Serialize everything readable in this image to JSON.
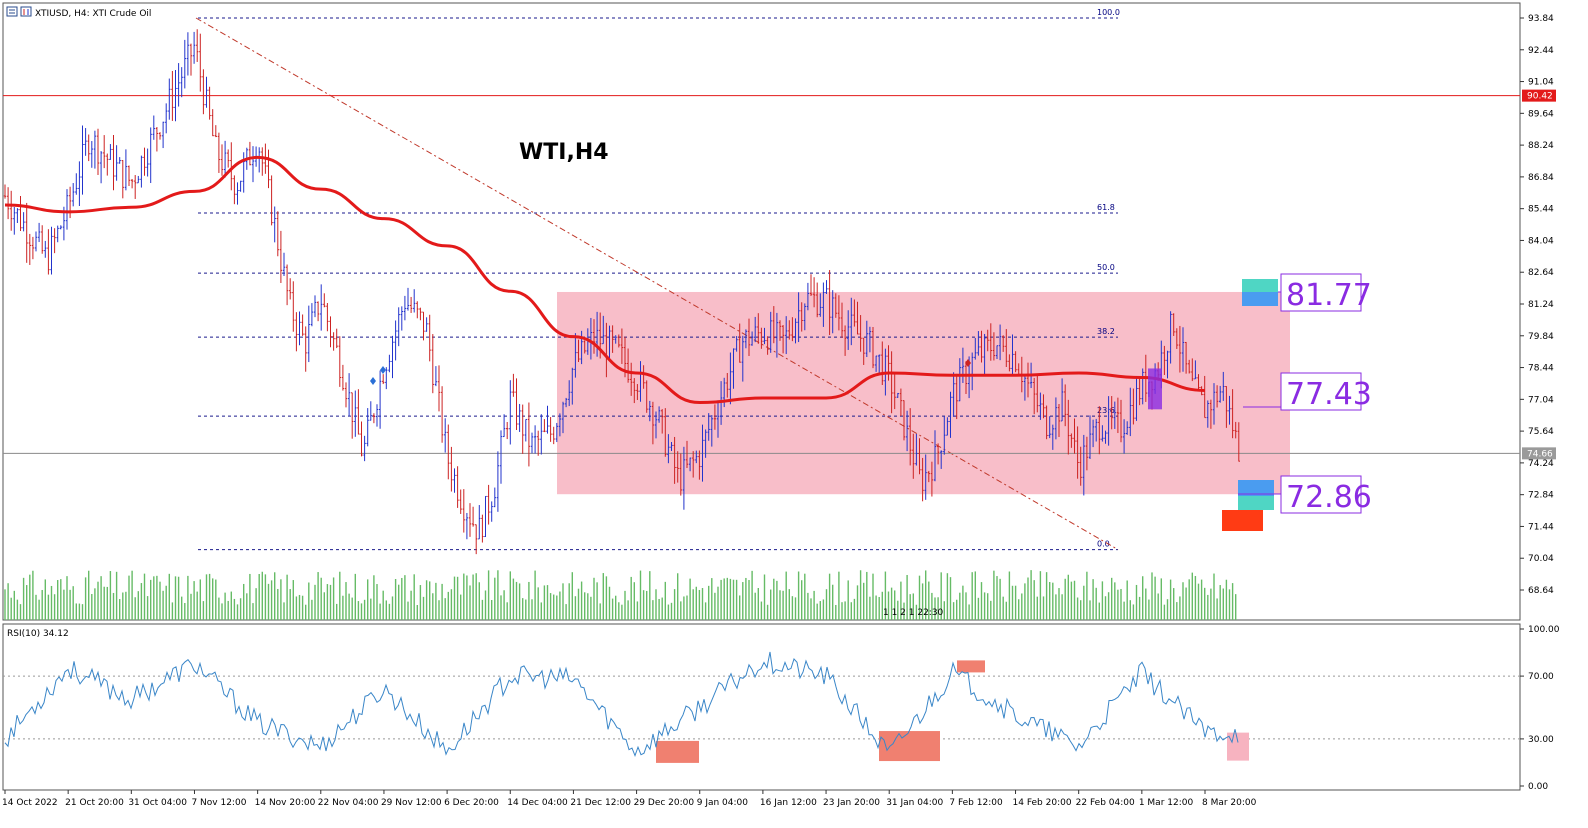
{
  "header": {
    "title": "XTIUSD, H4:  XTI Crude Oil",
    "chart_label": "WTI,H4",
    "rsi_label": "RSI(10) 34.12"
  },
  "price_axis": {
    "ticks": [
      "93.84",
      "92.44",
      "91.04",
      "89.64",
      "88.24",
      "86.84",
      "85.44",
      "84.04",
      "82.64",
      "81.24",
      "79.84",
      "78.44",
      "77.04",
      "75.64",
      "74.24",
      "72.84",
      "71.44",
      "70.04",
      "68.64"
    ],
    "current_price": "74.66",
    "marked_price": "90.42"
  },
  "rsi_axis": {
    "ticks": [
      "100.00",
      "70.00",
      "30.00",
      "0.00"
    ]
  },
  "time_axis": {
    "ticks": [
      "14 Oct 2022",
      "21 Oct 20:00",
      "31 Oct 04:00",
      "7 Nov 12:00",
      "14 Nov 20:00",
      "22 Nov 04:00",
      "29 Nov 12:00",
      "6 Dec 20:00",
      "14 Dec 04:00",
      "21 Dec 12:00",
      "29 Dec 20:00",
      "9 Jan 04:00",
      "16 Jan 12:00",
      "23 Jan 20:00",
      "31 Jan 04:00",
      "7 Feb 12:00",
      "14 Feb 20:00",
      "22 Feb 04:00",
      "1 Mar 12:00",
      "8 Mar 20:00"
    ]
  },
  "fibonacci": {
    "levels": [
      {
        "label": "100.0",
        "price": 93.84
      },
      {
        "label": "61.8",
        "price": 85.25
      },
      {
        "label": "50.0",
        "price": 82.6
      },
      {
        "label": "38.2",
        "price": 79.78
      },
      {
        "label": "23.6",
        "price": 76.3
      },
      {
        "label": "0.0",
        "price": 70.42
      }
    ]
  },
  "levels": {
    "upper": "81.77",
    "middle": "77.43",
    "lower": "72.86"
  },
  "session_labels": "1 1 2 1 22:30",
  "colors": {
    "bull": "#2233cc",
    "bear": "#cc2222",
    "ma": "#e31a1a",
    "range_box": "#f7b3c0",
    "volume": "#66bb66",
    "rsi": "#3a86c8",
    "fib": "#1a1a8c",
    "level_text": "#8a2be2"
  },
  "chart_data": {
    "type": "candlestick",
    "symbol": "XTIUSD",
    "timeframe": "H4",
    "ylim": [
      68.0,
      94.5
    ],
    "close_path": [
      {
        "x": "14 Oct 2022",
        "y": 86.0
      },
      {
        "x": "17 Oct",
        "y": 84.6
      },
      {
        "x": "19 Oct",
        "y": 83.2
      },
      {
        "x": "21 Oct 20:00",
        "y": 85.5
      },
      {
        "x": "25 Oct",
        "y": 88.6
      },
      {
        "x": "28 Oct",
        "y": 87.5
      },
      {
        "x": "31 Oct 04:00",
        "y": 86.6
      },
      {
        "x": "3 Nov",
        "y": 89.5
      },
      {
        "x": "7 Nov 12:00",
        "y": 92.6
      },
      {
        "x": "9 Nov",
        "y": 88.0
      },
      {
        "x": "11 Nov",
        "y": 86.5
      },
      {
        "x": "14 Nov 20:00",
        "y": 88.5
      },
      {
        "x": "16 Nov",
        "y": 85.0
      },
      {
        "x": "18 Nov",
        "y": 81.2
      },
      {
        "x": "21 Nov",
        "y": 79.5
      },
      {
        "x": "22 Nov 04:00",
        "y": 81.5
      },
      {
        "x": "24 Nov",
        "y": 78.4
      },
      {
        "x": "28 Nov",
        "y": 74.6
      },
      {
        "x": "29 Nov 12:00",
        "y": 78.5
      },
      {
        "x": "1 Dec",
        "y": 81.4
      },
      {
        "x": "3 Dec",
        "y": 80.2
      },
      {
        "x": "6 Dec 20:00",
        "y": 74.5
      },
      {
        "x": "8 Dec",
        "y": 72.5
      },
      {
        "x": "9 Dec",
        "y": 71.2
      },
      {
        "x": "12 Dec",
        "y": 73.2
      },
      {
        "x": "14 Dec 04:00",
        "y": 77.0
      },
      {
        "x": "16 Dec",
        "y": 75.0
      },
      {
        "x": "19 Dec",
        "y": 75.6
      },
      {
        "x": "21 Dec 12:00",
        "y": 78.5
      },
      {
        "x": "23 Dec",
        "y": 79.8
      },
      {
        "x": "27 Dec",
        "y": 79.2
      },
      {
        "x": "29 Dec 20:00",
        "y": 78.0
      },
      {
        "x": "3 Jan",
        "y": 76.2
      },
      {
        "x": "5 Jan",
        "y": 73.5
      },
      {
        "x": "9 Jan 04:00",
        "y": 74.6
      },
      {
        "x": "11 Jan",
        "y": 77.2
      },
      {
        "x": "13 Jan",
        "y": 79.6
      },
      {
        "x": "16 Jan 12:00",
        "y": 80.0
      },
      {
        "x": "18 Jan",
        "y": 79.6
      },
      {
        "x": "20 Jan",
        "y": 81.5
      },
      {
        "x": "23 Jan 20:00",
        "y": 81.4
      },
      {
        "x": "25 Jan",
        "y": 80.3
      },
      {
        "x": "27 Jan",
        "y": 79.5
      },
      {
        "x": "31 Jan 04:00",
        "y": 78.0
      },
      {
        "x": "2 Feb",
        "y": 75.8
      },
      {
        "x": "3 Feb",
        "y": 73.4
      },
      {
        "x": "6 Feb",
        "y": 74.5
      },
      {
        "x": "7 Feb 12:00",
        "y": 77.2
      },
      {
        "x": "9 Feb",
        "y": 78.8
      },
      {
        "x": "10 Feb",
        "y": 79.5
      },
      {
        "x": "14 Feb 20:00",
        "y": 78.9
      },
      {
        "x": "16 Feb",
        "y": 77.3
      },
      {
        "x": "17 Feb",
        "y": 76.0
      },
      {
        "x": "20 Feb",
        "y": 76.8
      },
      {
        "x": "22 Feb 04:00",
        "y": 74.1
      },
      {
        "x": "24 Feb",
        "y": 76.0
      },
      {
        "x": "27 Feb",
        "y": 75.8
      },
      {
        "x": "1 Mar 12:00",
        "y": 77.6
      },
      {
        "x": "3 Mar",
        "y": 78.4
      },
      {
        "x": "6 Mar",
        "y": 80.5
      },
      {
        "x": "7 Mar",
        "y": 77.8
      },
      {
        "x": "8 Mar 20:00",
        "y": 76.6
      },
      {
        "x": "9 Mar",
        "y": 77.5
      },
      {
        "x": "10 Mar",
        "y": 74.66
      }
    ],
    "moving_average": [
      {
        "x": "14 Oct 2022",
        "y": 85.6
      },
      {
        "x": "21 Oct 20:00",
        "y": 85.3
      },
      {
        "x": "31 Oct 04:00",
        "y": 85.5
      },
      {
        "x": "7 Nov 12:00",
        "y": 86.2
      },
      {
        "x": "14 Nov 20:00",
        "y": 87.7
      },
      {
        "x": "22 Nov 04:00",
        "y": 86.3
      },
      {
        "x": "29 Nov 12:00",
        "y": 85.0
      },
      {
        "x": "6 Dec 20:00",
        "y": 83.8
      },
      {
        "x": "14 Dec 04:00",
        "y": 81.8
      },
      {
        "x": "21 Dec 12:00",
        "y": 79.8
      },
      {
        "x": "29 Dec 20:00",
        "y": 78.2
      },
      {
        "x": "9 Jan 04:00",
        "y": 76.9
      },
      {
        "x": "16 Jan 12:00",
        "y": 77.1
      },
      {
        "x": "23 Jan 20:00",
        "y": 77.1
      },
      {
        "x": "31 Jan 04:00",
        "y": 78.2
      },
      {
        "x": "7 Feb 12:00",
        "y": 78.1
      },
      {
        "x": "14 Feb 20:00",
        "y": 78.1
      },
      {
        "x": "22 Feb 04:00",
        "y": 78.2
      },
      {
        "x": "1 Mar 12:00",
        "y": 78.0
      },
      {
        "x": "8 Mar 20:00",
        "y": 77.43
      }
    ],
    "rsi_series_sample": [
      {
        "x": "14 Oct 2022",
        "y": 30
      },
      {
        "x": "21 Oct 20:00",
        "y": 75
      },
      {
        "x": "31 Oct 04:00",
        "y": 55
      },
      {
        "x": "7 Nov 12:00",
        "y": 78
      },
      {
        "x": "14 Nov 20:00",
        "y": 40
      },
      {
        "x": "22 Nov 04:00",
        "y": 25
      },
      {
        "x": "29 Nov 12:00",
        "y": 62
      },
      {
        "x": "6 Dec 20:00",
        "y": 22
      },
      {
        "x": "14 Dec 04:00",
        "y": 70
      },
      {
        "x": "21 Dec 12:00",
        "y": 68
      },
      {
        "x": "29 Dec 20:00",
        "y": 22
      },
      {
        "x": "9 Jan 04:00",
        "y": 50
      },
      {
        "x": "16 Jan 12:00",
        "y": 80
      },
      {
        "x": "23 Jan 20:00",
        "y": 70
      },
      {
        "x": "31 Jan 04:00",
        "y": 20
      },
      {
        "x": "7 Feb 12:00",
        "y": 72
      },
      {
        "x": "14 Feb 20:00",
        "y": 45
      },
      {
        "x": "22 Feb 04:00",
        "y": 25
      },
      {
        "x": "1 Mar 12:00",
        "y": 72
      },
      {
        "x": "8 Mar 20:00",
        "y": 34.12
      }
    ]
  }
}
